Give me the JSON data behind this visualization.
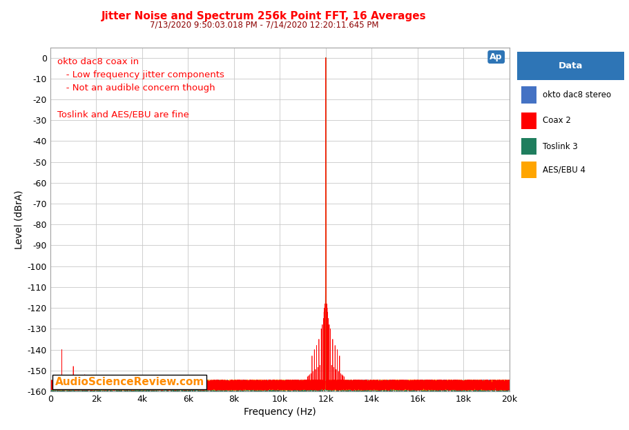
{
  "title": "Jitter Noise and Spectrum 256k Point FFT, 16 Averages",
  "subtitle": "7/13/2020 9:50:03.018 PM - 7/14/2020 12:20:11.645 PM",
  "xlabel": "Frequency (Hz)",
  "ylabel": "Level (dBrA)",
  "xlim": [
    0,
    20000
  ],
  "ylim": [
    -160,
    5
  ],
  "yticks": [
    0,
    -10,
    -20,
    -30,
    -40,
    -50,
    -60,
    -70,
    -80,
    -90,
    -100,
    -110,
    -120,
    -130,
    -140,
    -150,
    -160
  ],
  "xticks": [
    0,
    2000,
    4000,
    6000,
    8000,
    10000,
    12000,
    14000,
    16000,
    18000,
    20000
  ],
  "xtick_labels": [
    "0",
    "2k",
    "4k",
    "6k",
    "8k",
    "10k",
    "12k",
    "14k",
    "16k",
    "18k",
    "20k"
  ],
  "title_color": "#FF0000",
  "subtitle_color": "#8B0000",
  "annotation_color": "#FF0000",
  "annotation_text": "okto dac8 coax in\n   - Low frequency jitter components\n   - Not an audible concern though\n\nToslink and AES/EBU are fine",
  "watermark": "AudioScienceReview.com",
  "watermark_color": "#FF8C00",
  "ap_logo_color": "#2E75B6",
  "legend_title": "Data",
  "legend_title_bg": "#2E75B6",
  "legend_entries": [
    "okto dac8 stereo",
    "Coax 2",
    "Toslink 3",
    "AES/EBU 4"
  ],
  "colors": {
    "stereo": "#4472C4",
    "coax": "#FF0000",
    "toslink": "#1F7E5E",
    "aesebu": "#FFA500"
  },
  "bg_color": "#FFFFFF",
  "plot_bg_color": "#FFFFFF",
  "grid_color": "#C8C8C8",
  "noise_floor": -157,
  "fundamental_freq": 12000
}
